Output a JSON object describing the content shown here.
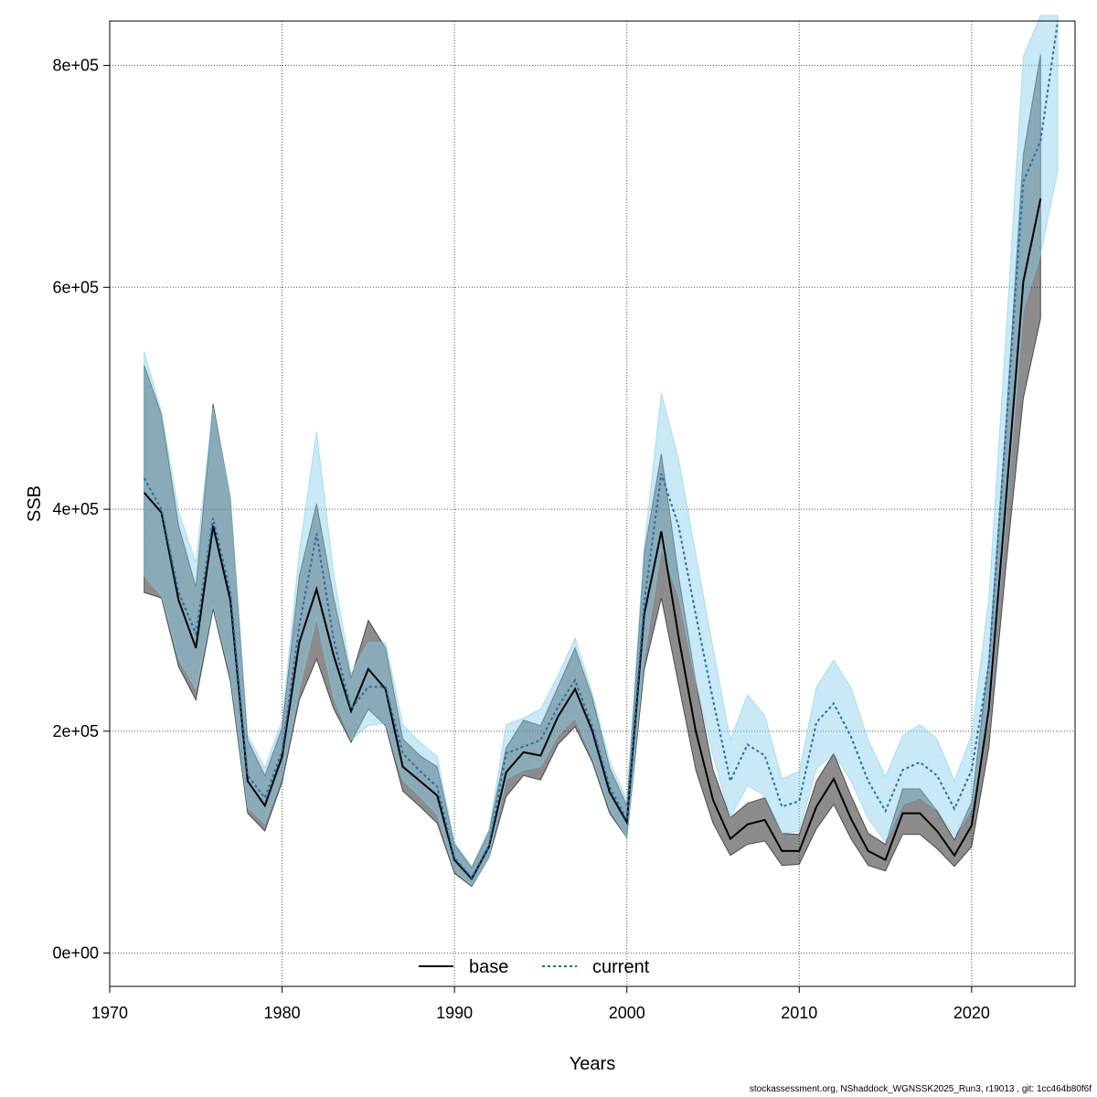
{
  "chart_data": {
    "type": "line",
    "xlabel": "Years",
    "ylabel": "SSB",
    "xlim": [
      1970,
      2026
    ],
    "ylim": [
      -30000,
      840000
    ],
    "x_ticks": [
      1970,
      1980,
      1990,
      2000,
      2010,
      2020
    ],
    "y_ticks": [
      0,
      200000,
      400000,
      600000,
      800000
    ],
    "y_tick_labels": [
      "0e+00",
      "2e+05",
      "4e+05",
      "6e+05",
      "8e+05"
    ],
    "grid": true,
    "legend_placement": "bottom",
    "series": [
      {
        "name": "base",
        "color": "#000000",
        "band_color": "#000000",
        "line_style": "solid",
        "x": [
          1972,
          1973,
          1974,
          1975,
          1976,
          1977,
          1978,
          1979,
          1980,
          1981,
          1982,
          1983,
          1984,
          1985,
          1986,
          1987,
          1988,
          1989,
          1990,
          1991,
          1992,
          1993,
          1994,
          1995,
          1996,
          1997,
          1998,
          1999,
          2000,
          2001,
          2002,
          2003,
          2004,
          2005,
          2006,
          2007,
          2008,
          2009,
          2010,
          2011,
          2012,
          2013,
          2014,
          2015,
          2016,
          2017,
          2018,
          2019,
          2020,
          2021,
          2022,
          2023,
          2024
        ],
        "values": [
          415000,
          397000,
          318000,
          275000,
          385000,
          318000,
          155000,
          133000,
          177000,
          280000,
          328000,
          268000,
          218000,
          256000,
          238000,
          168000,
          155000,
          142000,
          84000,
          67000,
          96000,
          163000,
          181000,
          178000,
          213000,
          238000,
          200000,
          145000,
          118000,
          305000,
          380000,
          285000,
          200000,
          138000,
          103000,
          116000,
          120000,
          92000,
          92000,
          132000,
          157000,
          121000,
          92000,
          84000,
          126000,
          126000,
          110000,
          88000,
          115000,
          220000,
          410000,
          605000,
          680000
        ],
        "lower": [
          325000,
          320000,
          258000,
          228000,
          310000,
          245000,
          126000,
          110000,
          154000,
          228000,
          265000,
          220000,
          190000,
          220000,
          205000,
          146000,
          132000,
          117000,
          72000,
          60000,
          86000,
          141000,
          160000,
          156000,
          188000,
          204000,
          172000,
          126000,
          104000,
          255000,
          320000,
          242000,
          165000,
          117000,
          88000,
          98000,
          101000,
          79000,
          80000,
          112000,
          134000,
          103000,
          79000,
          74000,
          107000,
          107000,
          94000,
          78000,
          96000,
          185000,
          350000,
          500000,
          572000
        ],
        "upper": [
          530000,
          485000,
          385000,
          330000,
          495000,
          410000,
          192000,
          160000,
          203000,
          340000,
          405000,
          320000,
          248000,
          300000,
          275000,
          193000,
          178000,
          168000,
          98000,
          77000,
          110000,
          185000,
          210000,
          205000,
          240000,
          275000,
          230000,
          167000,
          133000,
          360000,
          450000,
          340000,
          245000,
          165000,
          122000,
          135000,
          140000,
          108000,
          107000,
          155000,
          180000,
          142000,
          108000,
          98000,
          148000,
          148000,
          128000,
          102000,
          136000,
          265000,
          480000,
          720000,
          810000
        ]
      },
      {
        "name": "current",
        "color": "#1f6fa5",
        "band_color": "#87ceeb",
        "line_style": "dotted",
        "x": [
          1972,
          1973,
          1974,
          1975,
          1976,
          1977,
          1978,
          1979,
          1980,
          1981,
          1982,
          1983,
          1984,
          1985,
          1986,
          1987,
          1988,
          1989,
          1990,
          1991,
          1992,
          1993,
          1994,
          1995,
          1996,
          1997,
          1998,
          1999,
          2000,
          2001,
          2002,
          2003,
          2004,
          2005,
          2006,
          2007,
          2008,
          2009,
          2010,
          2011,
          2012,
          2013,
          2014,
          2015,
          2016,
          2017,
          2018,
          2019,
          2020,
          2021,
          2022,
          2023,
          2024,
          2025
        ],
        "values": [
          428000,
          400000,
          325000,
          288000,
          392000,
          325000,
          160000,
          140000,
          182000,
          295000,
          378000,
          282000,
          220000,
          240000,
          240000,
          180000,
          164000,
          150000,
          86000,
          68000,
          97000,
          180000,
          186000,
          192000,
          222000,
          246000,
          204000,
          150000,
          120000,
          315000,
          432000,
          385000,
          305000,
          228000,
          155000,
          188000,
          178000,
          132000,
          137000,
          208000,
          225000,
          195000,
          155000,
          128000,
          165000,
          172000,
          160000,
          130000,
          165000,
          260000,
          475000,
          695000,
          732000,
          840000
        ],
        "lower": [
          340000,
          322000,
          265000,
          238000,
          313000,
          250000,
          131000,
          117000,
          159000,
          238000,
          302000,
          230000,
          192000,
          205000,
          207000,
          156000,
          141000,
          125000,
          74000,
          61000,
          86000,
          157000,
          165000,
          168000,
          196000,
          212000,
          176000,
          130000,
          104000,
          265000,
          365000,
          322000,
          245000,
          178000,
          122000,
          151000,
          142000,
          108000,
          110000,
          166000,
          180000,
          155000,
          121000,
          100000,
          134000,
          140000,
          129000,
          105000,
          130000,
          210000,
          395000,
          580000,
          630000,
          705000
        ],
        "upper": [
          542000,
          488000,
          398000,
          352000,
          492000,
          410000,
          197000,
          167000,
          210000,
          362000,
          470000,
          342000,
          252000,
          280000,
          280000,
          206000,
          190000,
          177000,
          100000,
          78000,
          111000,
          206000,
          212000,
          220000,
          250000,
          284000,
          234000,
          173000,
          138000,
          365000,
          505000,
          445000,
          360000,
          275000,
          192000,
          233000,
          214000,
          157000,
          164000,
          240000,
          264000,
          239000,
          192000,
          159000,
          196000,
          206000,
          193000,
          155000,
          197000,
          320000,
          560000,
          808000,
          845000,
          845000
        ]
      }
    ]
  },
  "footer": {
    "text": "stockassessment.org, NShaddock_WGNSSK2025_Run3, r19013 , git: 1cc464b80f6f"
  }
}
